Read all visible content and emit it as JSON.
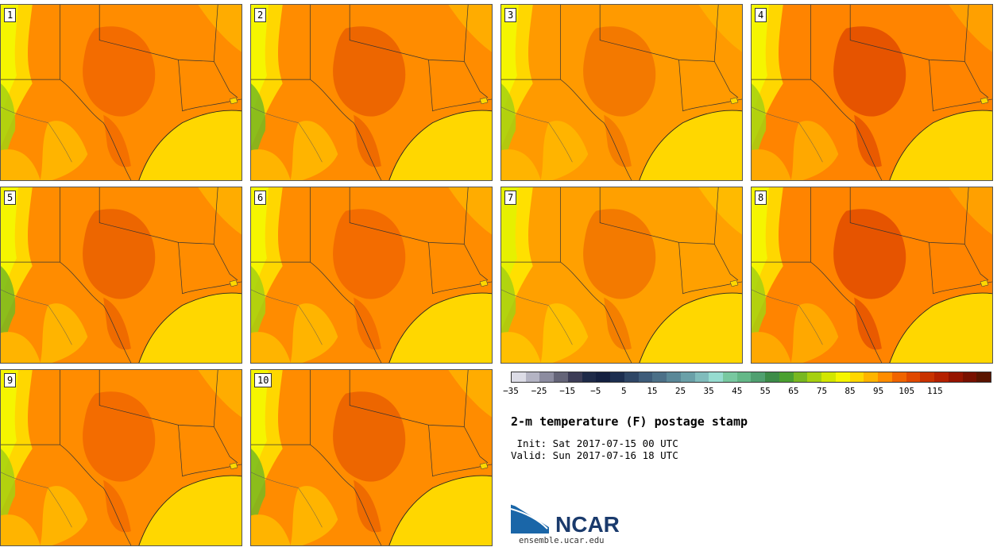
{
  "panels": [
    {
      "label": "1",
      "variant": 0
    },
    {
      "label": "2",
      "variant": 1
    },
    {
      "label": "3",
      "variant": 2
    },
    {
      "label": "4",
      "variant": 3
    },
    {
      "label": "5",
      "variant": 1
    },
    {
      "label": "6",
      "variant": 0
    },
    {
      "label": "7",
      "variant": 4
    },
    {
      "label": "8",
      "variant": 3
    },
    {
      "label": "9",
      "variant": 0
    },
    {
      "label": "10",
      "variant": 1
    }
  ],
  "colorbar": {
    "colors": [
      "#dcdce6",
      "#b4b4c4",
      "#8c8ca0",
      "#646478",
      "#3c3c56",
      "#1e2a48",
      "#142040",
      "#1c2e50",
      "#2e4666",
      "#3e5c7a",
      "#4c7088",
      "#5a8898",
      "#6aa0a8",
      "#80bcbc",
      "#96dcd0",
      "#78c8a0",
      "#64b888",
      "#50a070",
      "#3c8c48",
      "#4aa030",
      "#78b820",
      "#a6d010",
      "#d2e600",
      "#f5f500",
      "#ffd700",
      "#ffb400",
      "#ff8c00",
      "#f06400",
      "#e04800",
      "#c83200",
      "#b42000",
      "#961400",
      "#781000",
      "#5a1400"
    ],
    "ticks": [
      "−35",
      "−25",
      "−15",
      "−5",
      "5",
      "15",
      "25",
      "35",
      "45",
      "55",
      "65",
      "75",
      "85",
      "95",
      "105",
      "115"
    ]
  },
  "title": "2-m temperature (F) postage stamp",
  "init_line": " Init: Sat 2017-07-15 00 UTC",
  "valid_line": "Valid: Sun 2017-07-16 18 UTC",
  "logo": {
    "text": "NCAR",
    "url": "ensemble.ucar.edu"
  }
}
